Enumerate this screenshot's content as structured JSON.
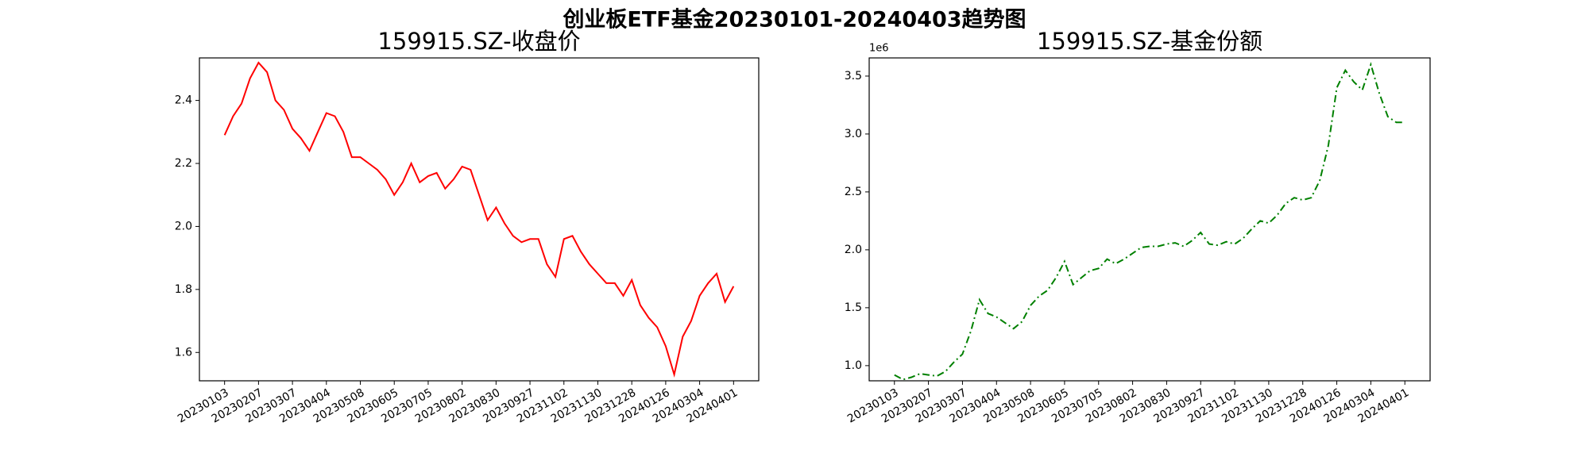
{
  "title": "创业板ETF基金20230101-20240403趋势图",
  "chart_data": [
    {
      "type": "line",
      "title": "159915.SZ-收盘价",
      "categories": [
        "20230103",
        null,
        null,
        null,
        "20230207",
        null,
        null,
        null,
        "20230307",
        null,
        null,
        null,
        "20230404",
        null,
        null,
        null,
        "20230508",
        null,
        null,
        null,
        "20230605",
        null,
        null,
        null,
        "20230705",
        null,
        null,
        null,
        "20230802",
        null,
        null,
        null,
        "20230830",
        null,
        null,
        null,
        "20230927",
        null,
        null,
        null,
        "20231102",
        null,
        null,
        null,
        "20231130",
        null,
        null,
        null,
        "20231228",
        null,
        null,
        null,
        "20240126",
        null,
        null,
        null,
        "20240304",
        null,
        null,
        null,
        "20240401"
      ],
      "series": [
        {
          "name": "159915.SZ",
          "color": "#ff0000",
          "linestyle": "solid",
          "values": [
            2.29,
            2.35,
            2.39,
            2.47,
            2.52,
            2.49,
            2.4,
            2.37,
            2.31,
            2.28,
            2.24,
            2.3,
            2.36,
            2.35,
            2.3,
            2.22,
            2.22,
            2.2,
            2.18,
            2.15,
            2.1,
            2.14,
            2.2,
            2.14,
            2.16,
            2.17,
            2.12,
            2.15,
            2.19,
            2.18,
            2.1,
            2.02,
            2.06,
            2.01,
            1.97,
            1.95,
            1.96,
            1.96,
            1.88,
            1.84,
            1.96,
            1.97,
            1.92,
            1.88,
            1.85,
            1.82,
            1.82,
            1.78,
            1.83,
            1.75,
            1.71,
            1.68,
            1.62,
            1.53,
            1.65,
            1.7,
            1.78,
            1.82,
            1.85,
            1.76,
            1.81
          ]
        }
      ],
      "ylim": [
        1.51,
        2.535
      ],
      "yticks": [
        1.6,
        1.8,
        {
          "value": 2.0,
          "label": "2.0"
        },
        2.2,
        2.4
      ]
    },
    {
      "type": "line",
      "title": "159915.SZ-基金份额",
      "y_offset_label": "1e6",
      "categories": [
        "20230103",
        null,
        null,
        null,
        "20230207",
        null,
        null,
        null,
        "20230307",
        null,
        null,
        null,
        "20230404",
        null,
        null,
        null,
        "20230508",
        null,
        null,
        null,
        "20230605",
        null,
        null,
        null,
        "20230705",
        null,
        null,
        null,
        "20230802",
        null,
        null,
        null,
        "20230830",
        null,
        null,
        null,
        "20230927",
        null,
        null,
        null,
        "20231102",
        null,
        null,
        null,
        "20231130",
        null,
        null,
        null,
        "20231228",
        null,
        null,
        null,
        "20240126",
        null,
        null,
        null,
        "20240304",
        null,
        null,
        null,
        "20240401"
      ],
      "series": [
        {
          "name": "159915.SZ",
          "color": "#008000",
          "linestyle": "dashdot",
          "values": [
            0.92,
            0.88,
            0.9,
            0.93,
            0.92,
            0.91,
            0.95,
            1.03,
            1.1,
            1.3,
            1.57,
            1.45,
            1.42,
            1.37,
            1.32,
            1.38,
            1.52,
            1.6,
            1.65,
            1.76,
            1.9,
            1.7,
            1.76,
            1.82,
            1.84,
            1.92,
            1.88,
            1.92,
            1.97,
            2.02,
            2.03,
            2.03,
            2.05,
            2.06,
            2.03,
            2.08,
            2.15,
            2.05,
            2.04,
            2.07,
            2.05,
            2.1,
            2.18,
            2.25,
            2.23,
            2.3,
            2.4,
            2.45,
            2.43,
            2.45,
            2.6,
            2.9,
            3.4,
            3.55,
            3.45,
            3.38,
            3.6,
            3.35,
            3.15,
            3.1,
            3.1
          ]
        }
      ],
      "ylim": [
        0.869,
        3.657
      ],
      "yticks": [
        {
          "value": 1.0,
          "label": "1.0"
        },
        1.5,
        {
          "value": 2.0,
          "label": "2.0"
        },
        2.5,
        {
          "value": 3.0,
          "label": "3.0"
        },
        3.5
      ]
    }
  ]
}
